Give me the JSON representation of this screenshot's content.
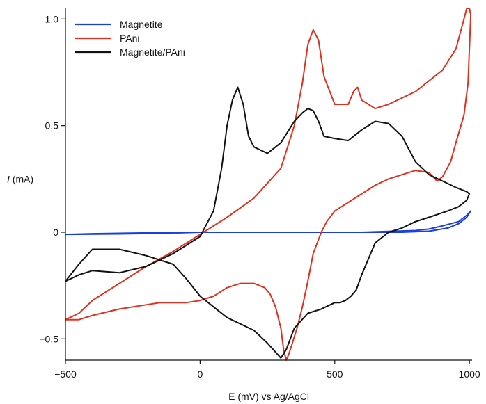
{
  "chart_data": {
    "type": "line",
    "title": "",
    "xlabel": "E (mV) vs Ag/AgCl",
    "ylabel": {
      "italic": "I",
      "rest": " (mA)"
    },
    "xlim": [
      -500,
      1010
    ],
    "ylim": [
      -0.6,
      1.05
    ],
    "xticks": [
      {
        "value": -500,
        "label": "−500"
      },
      {
        "value": 0,
        "label": "0"
      },
      {
        "value": 500,
        "label": "500"
      },
      {
        "value": 1000,
        "label": "1000"
      }
    ],
    "yticks": [
      {
        "value": 1.0,
        "label": "1.0"
      },
      {
        "value": 0.5,
        "label": "0.5"
      },
      {
        "value": 0,
        "label": "0"
      },
      {
        "value": -0.5,
        "label": "−0.5"
      }
    ],
    "legend_position": "top-left",
    "series": [
      {
        "name": "Magnetite",
        "color": "#1a3fe0",
        "x": [
          -500,
          -300,
          -100,
          0,
          200,
          400,
          600,
          750,
          850,
          920,
          960,
          990,
          1000,
          1005,
          990,
          960,
          900,
          850,
          800,
          600,
          400,
          200,
          0,
          -200,
          -400,
          -500
        ],
        "y": [
          -0.01,
          -0.008,
          -0.004,
          0.0,
          0.0,
          0.0,
          0.0,
          0.0,
          0.005,
          0.02,
          0.04,
          0.07,
          0.09,
          0.1,
          0.08,
          0.05,
          0.03,
          0.015,
          0.008,
          0.0,
          0.0,
          0.0,
          0.0,
          -0.003,
          -0.007,
          -0.01
        ]
      },
      {
        "name": "PAni",
        "color": "#e0301e",
        "x": [
          -500,
          -450,
          -400,
          -300,
          -200,
          -100,
          0,
          100,
          200,
          300,
          350,
          380,
          400,
          420,
          440,
          460,
          500,
          550,
          570,
          585,
          600,
          650,
          700,
          800,
          900,
          950,
          980,
          990,
          1000,
          1005,
          995,
          980,
          950,
          930,
          900,
          880,
          850,
          800,
          750,
          700,
          650,
          600,
          550,
          500,
          470,
          450,
          420,
          400,
          380,
          360,
          340,
          330,
          320,
          310,
          300,
          280,
          260,
          240,
          200,
          150,
          100,
          50,
          0,
          -50,
          -100,
          -150,
          -200,
          -300,
          -400,
          -450,
          -500
        ],
        "y": [
          -0.41,
          -0.38,
          -0.32,
          -0.24,
          -0.16,
          -0.09,
          -0.01,
          0.07,
          0.16,
          0.3,
          0.5,
          0.7,
          0.88,
          0.95,
          0.9,
          0.73,
          0.6,
          0.6,
          0.66,
          0.68,
          0.62,
          0.58,
          0.6,
          0.66,
          0.76,
          0.86,
          1.0,
          1.05,
          1.05,
          1.02,
          0.7,
          0.55,
          0.42,
          0.33,
          0.26,
          0.24,
          0.28,
          0.29,
          0.27,
          0.25,
          0.22,
          0.18,
          0.14,
          0.1,
          0.05,
          0.0,
          -0.1,
          -0.23,
          -0.35,
          -0.45,
          -0.53,
          -0.57,
          -0.6,
          -0.55,
          -0.45,
          -0.35,
          -0.29,
          -0.26,
          -0.24,
          -0.24,
          -0.26,
          -0.3,
          -0.32,
          -0.33,
          -0.33,
          -0.33,
          -0.34,
          -0.36,
          -0.39,
          -0.41,
          -0.41
        ]
      },
      {
        "name": "Magnetite/PAni",
        "color": "#111111",
        "x": [
          -500,
          -450,
          -400,
          -300,
          -200,
          -100,
          0,
          50,
          80,
          100,
          120,
          140,
          160,
          180,
          200,
          250,
          300,
          350,
          380,
          400,
          420,
          440,
          460,
          500,
          550,
          600,
          650,
          700,
          750,
          800,
          850,
          900,
          950,
          990,
          1000,
          990,
          960,
          920,
          850,
          800,
          750,
          700,
          650,
          600,
          580,
          560,
          540,
          520,
          500,
          450,
          400,
          350,
          320,
          300,
          250,
          200,
          150,
          100,
          50,
          0,
          -50,
          -100,
          -200,
          -300,
          -400,
          -450,
          -500
        ],
        "y": [
          -0.23,
          -0.2,
          -0.18,
          -0.19,
          -0.16,
          -0.1,
          -0.02,
          0.1,
          0.3,
          0.5,
          0.62,
          0.68,
          0.6,
          0.45,
          0.4,
          0.37,
          0.42,
          0.52,
          0.56,
          0.58,
          0.57,
          0.52,
          0.45,
          0.44,
          0.43,
          0.48,
          0.52,
          0.51,
          0.45,
          0.33,
          0.27,
          0.24,
          0.21,
          0.19,
          0.18,
          0.15,
          0.12,
          0.1,
          0.07,
          0.05,
          0.02,
          0.0,
          -0.05,
          -0.2,
          -0.27,
          -0.3,
          -0.32,
          -0.33,
          -0.33,
          -0.36,
          -0.38,
          -0.45,
          -0.55,
          -0.59,
          -0.52,
          -0.46,
          -0.43,
          -0.4,
          -0.35,
          -0.3,
          -0.22,
          -0.15,
          -0.11,
          -0.08,
          -0.08,
          -0.15,
          -0.23
        ]
      }
    ]
  }
}
